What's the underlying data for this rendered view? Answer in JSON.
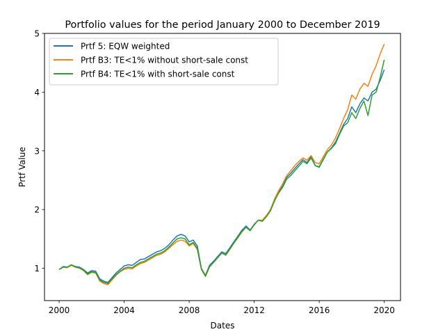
{
  "chart_data": {
    "type": "line",
    "title": "Portfolio values for the period January 2000 to December 2019",
    "xlabel": "Dates",
    "ylabel": "Prtf Value",
    "xlim": [
      1999.1,
      2021.0
    ],
    "ylim": [
      0.45,
      5.0
    ],
    "xticks": [
      2000,
      2004,
      2008,
      2012,
      2016,
      2020
    ],
    "xtick_labels": [
      "2000",
      "2004",
      "2008",
      "2012",
      "2016",
      "2020"
    ],
    "yticks": [
      1,
      2,
      3,
      4,
      5
    ],
    "ytick_labels": [
      "1",
      "2",
      "3",
      "4",
      "5"
    ],
    "grid": false,
    "legend_position": "upper-left",
    "x": [
      2000.0,
      2000.25,
      2000.5,
      2000.75,
      2001.0,
      2001.25,
      2001.5,
      2001.75,
      2002.0,
      2002.25,
      2002.5,
      2002.75,
      2003.0,
      2003.25,
      2003.5,
      2003.75,
      2004.0,
      2004.25,
      2004.5,
      2004.75,
      2005.0,
      2005.25,
      2005.5,
      2005.75,
      2006.0,
      2006.25,
      2006.5,
      2006.75,
      2007.0,
      2007.25,
      2007.5,
      2007.75,
      2008.0,
      2008.25,
      2008.5,
      2008.75,
      2009.0,
      2009.25,
      2009.5,
      2009.75,
      2010.0,
      2010.25,
      2010.5,
      2010.75,
      2011.0,
      2011.25,
      2011.5,
      2011.75,
      2012.0,
      2012.25,
      2012.5,
      2012.75,
      2013.0,
      2013.25,
      2013.5,
      2013.75,
      2014.0,
      2014.25,
      2014.5,
      2014.75,
      2015.0,
      2015.25,
      2015.5,
      2015.75,
      2016.0,
      2016.25,
      2016.5,
      2016.75,
      2017.0,
      2017.25,
      2017.5,
      2017.75,
      2018.0,
      2018.25,
      2018.5,
      2018.75,
      2019.0,
      2019.25,
      2019.5,
      2019.75,
      2020.0
    ],
    "series": [
      {
        "name": "Prtf 5: EQW weighted",
        "color": "#1f77b4",
        "values": [
          0.98,
          1.03,
          1.02,
          1.06,
          1.03,
          1.02,
          0.98,
          0.92,
          0.96,
          0.95,
          0.82,
          0.78,
          0.76,
          0.84,
          0.92,
          0.98,
          1.04,
          1.06,
          1.05,
          1.1,
          1.15,
          1.16,
          1.2,
          1.24,
          1.28,
          1.3,
          1.34,
          1.4,
          1.48,
          1.55,
          1.58,
          1.55,
          1.45,
          1.48,
          1.38,
          1.0,
          0.88,
          1.05,
          1.12,
          1.2,
          1.28,
          1.25,
          1.35,
          1.45,
          1.55,
          1.65,
          1.72,
          1.65,
          1.75,
          1.82,
          1.8,
          1.88,
          1.98,
          2.15,
          2.3,
          2.4,
          2.55,
          2.62,
          2.7,
          2.78,
          2.85,
          2.8,
          2.9,
          2.75,
          2.72,
          2.85,
          2.98,
          3.05,
          3.15,
          3.3,
          3.45,
          3.55,
          3.75,
          3.65,
          3.8,
          3.9,
          3.85,
          4.0,
          4.05,
          4.2,
          4.38
        ]
      },
      {
        "name": "Prtf B3: TE<1% without short-sale const",
        "color": "#ff7f0e",
        "values": [
          0.98,
          1.02,
          1.01,
          1.05,
          1.02,
          1.0,
          0.96,
          0.89,
          0.93,
          0.92,
          0.78,
          0.74,
          0.72,
          0.8,
          0.88,
          0.94,
          0.98,
          1.0,
          0.99,
          1.04,
          1.08,
          1.1,
          1.14,
          1.18,
          1.22,
          1.24,
          1.28,
          1.34,
          1.4,
          1.46,
          1.48,
          1.46,
          1.38,
          1.42,
          1.32,
          0.98,
          0.86,
          1.02,
          1.1,
          1.18,
          1.26,
          1.22,
          1.32,
          1.43,
          1.52,
          1.62,
          1.7,
          1.64,
          1.74,
          1.82,
          1.82,
          1.9,
          2.0,
          2.18,
          2.32,
          2.44,
          2.58,
          2.66,
          2.75,
          2.82,
          2.88,
          2.84,
          2.92,
          2.8,
          2.78,
          2.9,
          3.02,
          3.1,
          3.22,
          3.38,
          3.55,
          3.7,
          3.95,
          3.88,
          4.05,
          4.15,
          4.1,
          4.3,
          4.45,
          4.65,
          4.82
        ]
      },
      {
        "name": "Prtf B4: TE<1% with short-sale const",
        "color": "#2ca02c",
        "values": [
          0.98,
          1.02,
          1.02,
          1.06,
          1.02,
          1.01,
          0.97,
          0.9,
          0.94,
          0.93,
          0.8,
          0.76,
          0.74,
          0.82,
          0.89,
          0.95,
          1.0,
          1.02,
          1.01,
          1.06,
          1.1,
          1.12,
          1.16,
          1.2,
          1.24,
          1.26,
          1.3,
          1.36,
          1.43,
          1.5,
          1.52,
          1.5,
          1.4,
          1.44,
          1.34,
          0.99,
          0.87,
          1.03,
          1.1,
          1.18,
          1.26,
          1.23,
          1.33,
          1.43,
          1.53,
          1.63,
          1.7,
          1.64,
          1.74,
          1.82,
          1.8,
          1.88,
          1.98,
          2.15,
          2.28,
          2.38,
          2.52,
          2.58,
          2.66,
          2.74,
          2.82,
          2.78,
          2.88,
          2.75,
          2.73,
          2.86,
          2.98,
          3.04,
          3.12,
          3.28,
          3.42,
          3.48,
          3.65,
          3.55,
          3.72,
          3.85,
          3.6,
          3.95,
          4.0,
          4.25,
          4.55
        ]
      }
    ]
  }
}
